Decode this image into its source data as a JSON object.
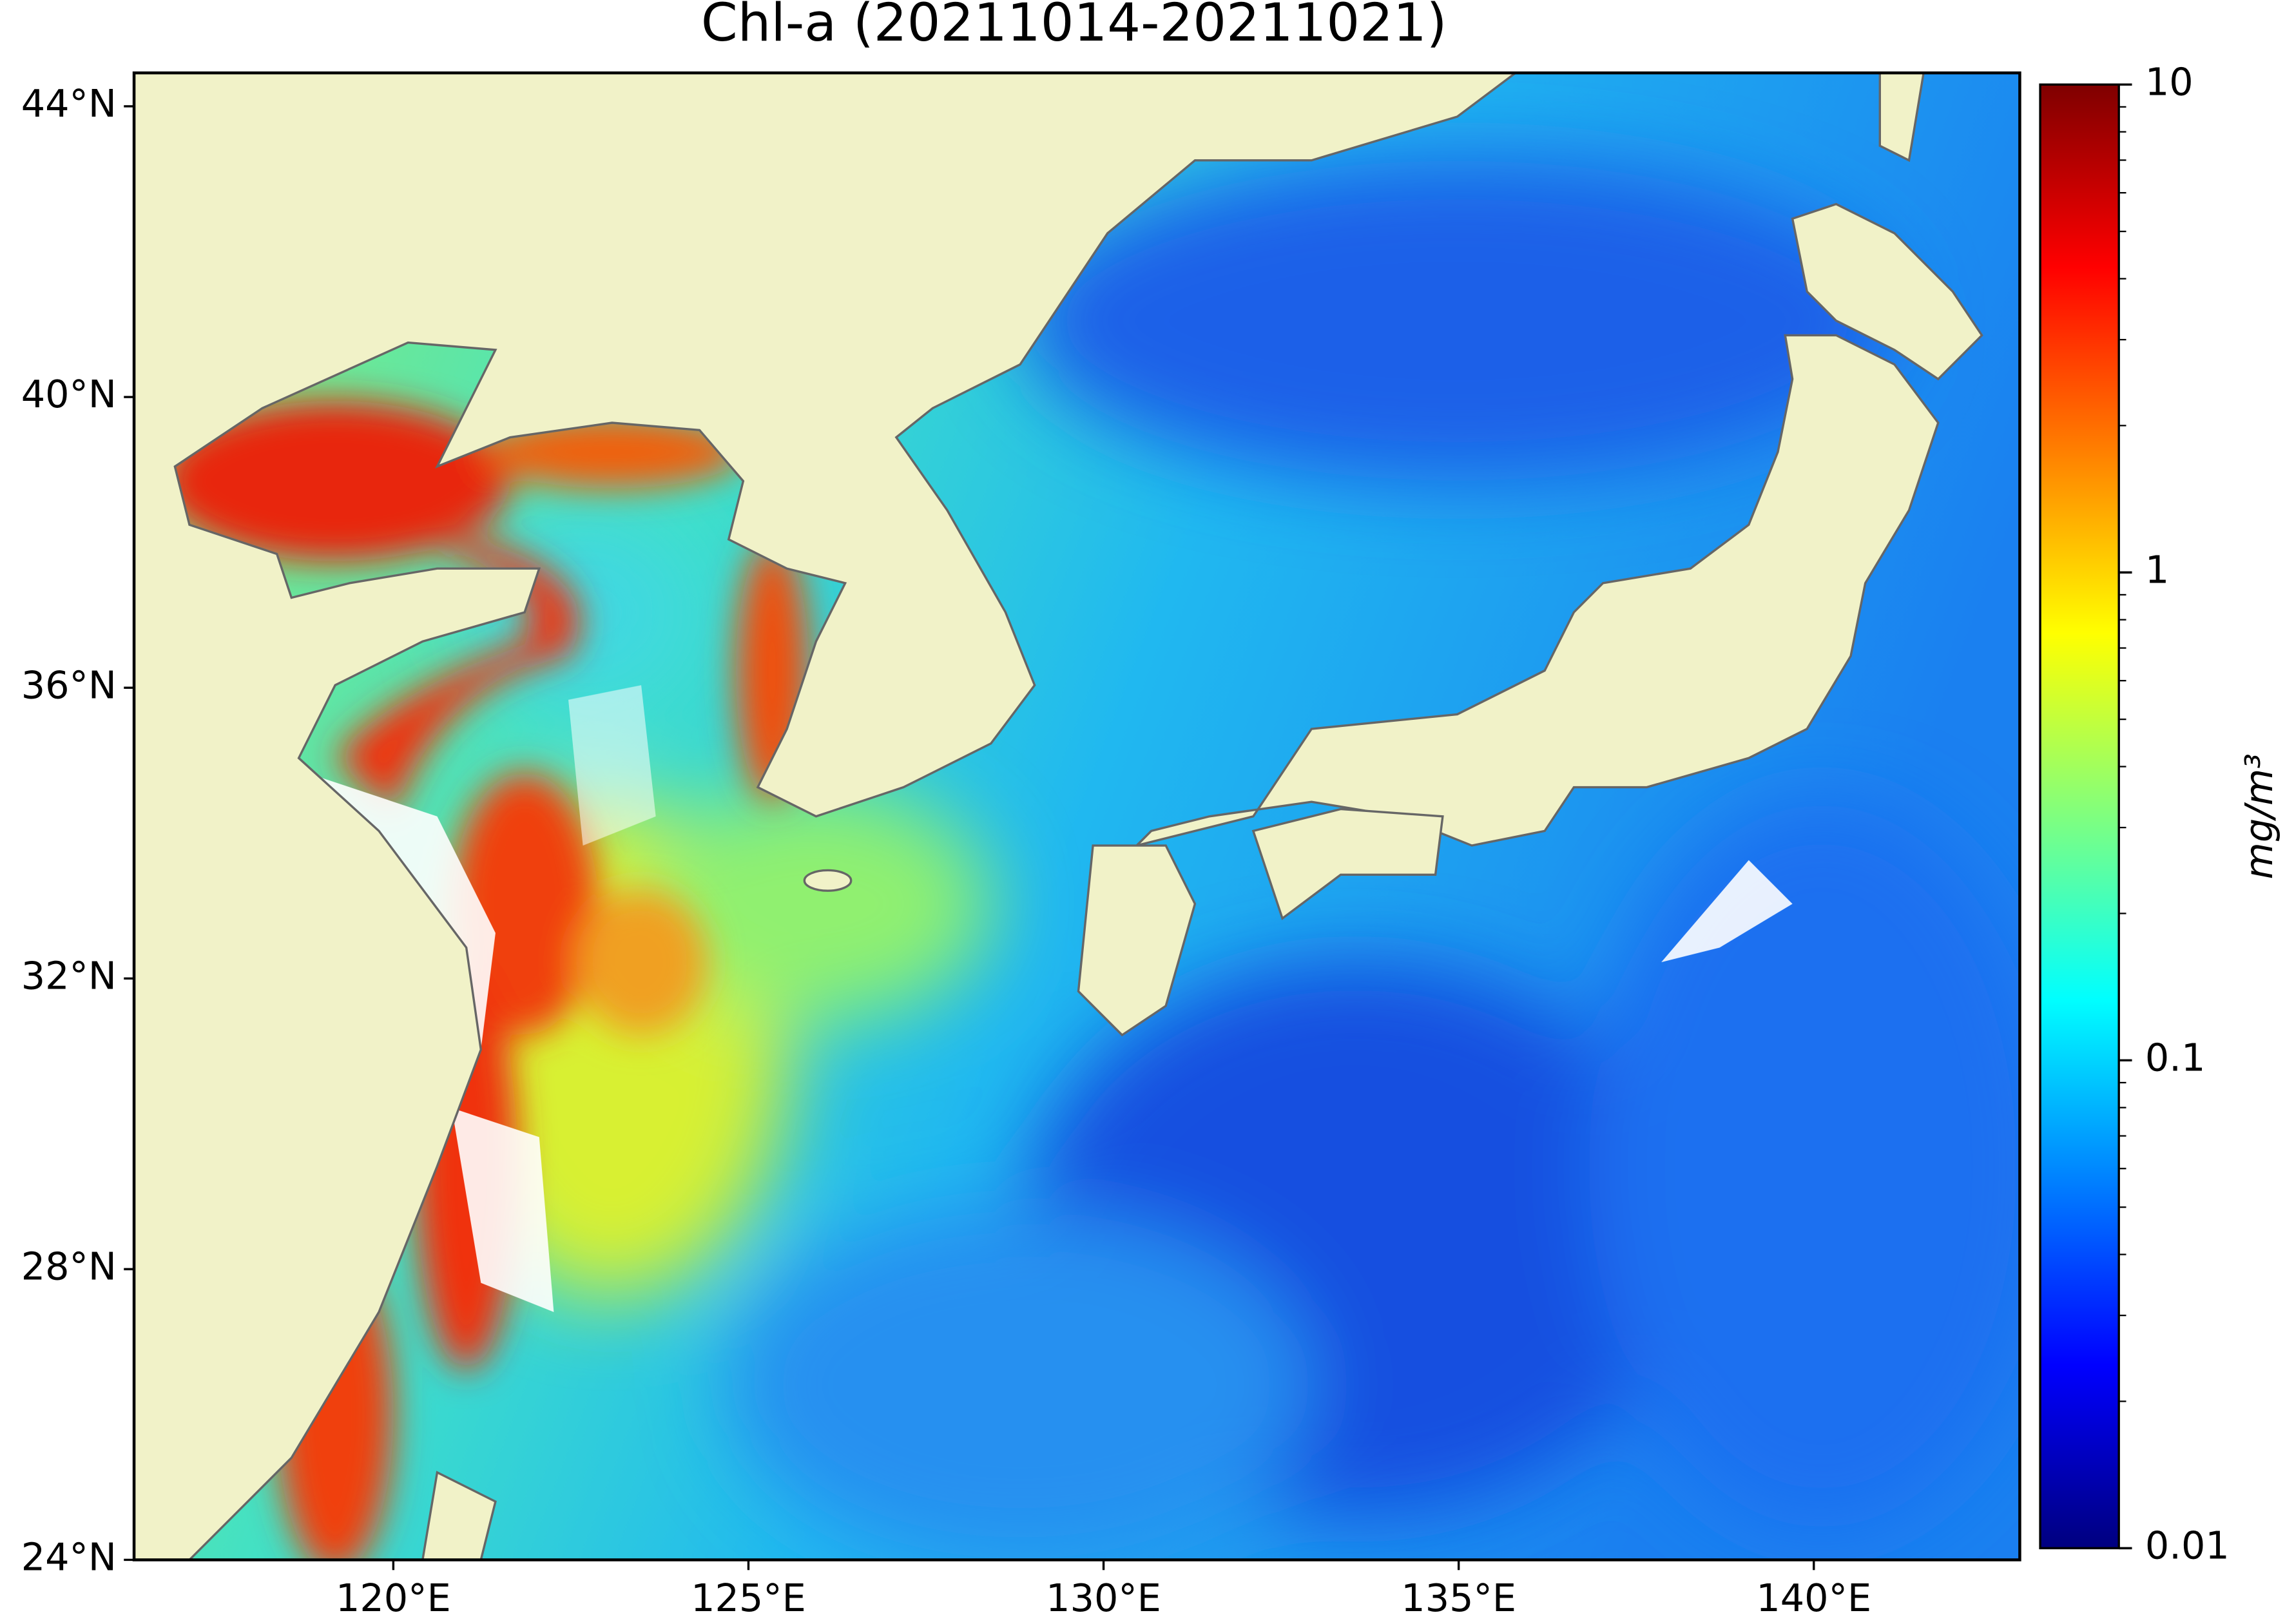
{
  "map": {
    "title": "Chl-a (20211014-20211021)",
    "xlim": [
      116.35,
      142.9
    ],
    "ylim": [
      24,
      44.46
    ],
    "xticks": [
      {
        "value": 120,
        "label": "120°E"
      },
      {
        "value": 125,
        "label": "125°E"
      },
      {
        "value": 130,
        "label": "130°E"
      },
      {
        "value": 135,
        "label": "135°E"
      },
      {
        "value": 140,
        "label": "140°E"
      }
    ],
    "yticks": [
      {
        "value": 24,
        "label": "24°N"
      },
      {
        "value": 28,
        "label": "28°N"
      },
      {
        "value": 32,
        "label": "32°N"
      },
      {
        "value": 36,
        "label": "36°N"
      },
      {
        "value": 40,
        "label": "40°N"
      },
      {
        "value": 44,
        "label": "44°N"
      }
    ],
    "colorbar": {
      "label": "mg/m³",
      "lim": [
        0.01,
        10
      ],
      "log": true,
      "ticks": [
        0.01,
        0.1,
        1,
        10
      ],
      "colors": [
        "#00007f",
        "#0000ff",
        "#007fff",
        "#00ffff",
        "#7fff7f",
        "#ffff00",
        "#ff7f00",
        "#ff0000",
        "#7f0000"
      ]
    }
  }
}
